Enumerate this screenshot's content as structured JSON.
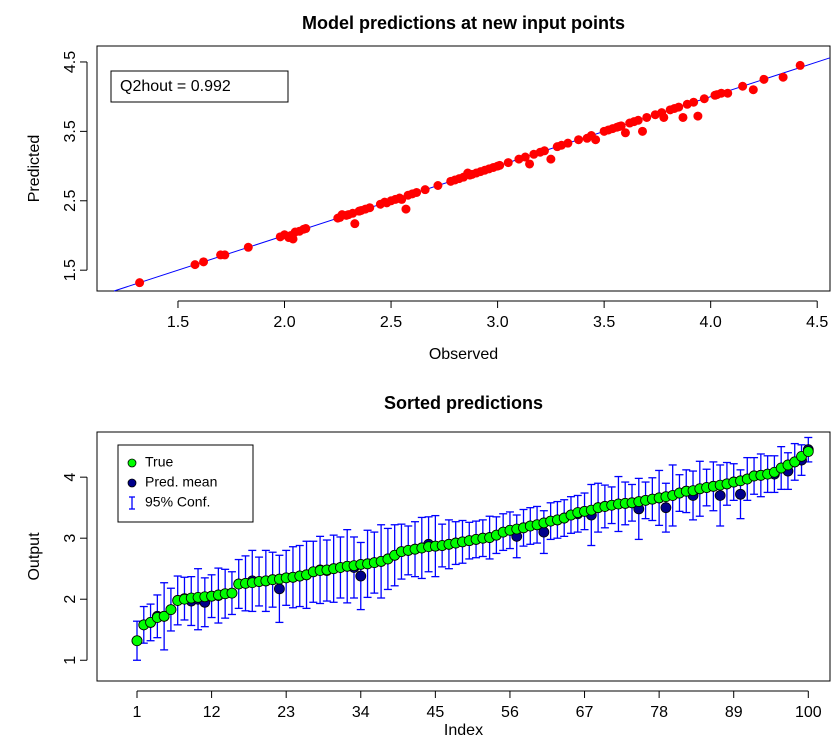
{
  "chart_data": [
    {
      "type": "scatter",
      "title": "Model predictions at new input points",
      "x_label": "Observed",
      "y_label": "Predicted",
      "annotation": "Q2hout = 0.992",
      "color": "#ff0000",
      "line_color": "#0000ff",
      "xlim": [
        1.12,
        4.56
      ],
      "ylim": [
        1.2,
        4.73
      ],
      "xticks": [
        1.5,
        {
          "value": 2,
          "label": "2.0"
        },
        2.5,
        {
          "value": 3,
          "label": "3.0"
        },
        3.5,
        {
          "value": 4,
          "label": "4.0"
        },
        4.5
      ],
      "yticks": [
        1.5,
        2.5,
        3.5,
        4.5
      ],
      "x": [
        1.32,
        1.58,
        1.62,
        1.7,
        1.72,
        1.83,
        1.98,
        2.0,
        2.02,
        2.03,
        2.04,
        2.05,
        2.07,
        2.09,
        2.1,
        2.25,
        2.26,
        2.27,
        2.29,
        2.3,
        2.32,
        2.33,
        2.35,
        2.36,
        2.38,
        2.4,
        2.45,
        2.47,
        2.48,
        2.5,
        2.52,
        2.54,
        2.55,
        2.57,
        2.58,
        2.6,
        2.62,
        2.66,
        2.72,
        2.78,
        2.8,
        2.82,
        2.84,
        2.86,
        2.87,
        2.88,
        2.9,
        2.92,
        2.94,
        2.96,
        2.98,
        3.0,
        3.01,
        3.05,
        3.1,
        3.13,
        3.15,
        3.17,
        3.2,
        3.22,
        3.25,
        3.28,
        3.3,
        3.33,
        3.38,
        3.42,
        3.44,
        3.46,
        3.5,
        3.52,
        3.54,
        3.56,
        3.57,
        3.58,
        3.6,
        3.62,
        3.64,
        3.66,
        3.68,
        3.7,
        3.74,
        3.77,
        3.78,
        3.81,
        3.83,
        3.85,
        3.87,
        3.89,
        3.92,
        3.94,
        3.97,
        4.02,
        4.03,
        4.05,
        4.08,
        4.15,
        4.2,
        4.25,
        4.34,
        4.42
      ],
      "y": [
        1.32,
        1.58,
        1.62,
        1.72,
        1.72,
        1.83,
        1.98,
        2.01,
        1.97,
        2.0,
        1.95,
        2.05,
        2.06,
        2.09,
        2.1,
        2.25,
        2.26,
        2.3,
        2.29,
        2.3,
        2.32,
        2.17,
        2.35,
        2.36,
        2.38,
        2.4,
        2.45,
        2.48,
        2.47,
        2.5,
        2.52,
        2.54,
        2.52,
        2.38,
        2.58,
        2.6,
        2.62,
        2.66,
        2.72,
        2.78,
        2.8,
        2.82,
        2.84,
        2.9,
        2.87,
        2.88,
        2.9,
        2.92,
        2.94,
        2.96,
        2.98,
        3.0,
        3.01,
        3.05,
        3.1,
        3.13,
        3.03,
        3.17,
        3.2,
        3.22,
        3.1,
        3.28,
        3.3,
        3.33,
        3.38,
        3.4,
        3.44,
        3.38,
        3.5,
        3.52,
        3.54,
        3.56,
        3.57,
        3.58,
        3.48,
        3.62,
        3.64,
        3.66,
        3.5,
        3.7,
        3.74,
        3.77,
        3.7,
        3.81,
        3.83,
        3.85,
        3.7,
        3.89,
        3.92,
        3.72,
        3.97,
        4.02,
        4.03,
        4.05,
        4.05,
        4.15,
        4.1,
        4.25,
        4.28,
        4.45
      ]
    },
    {
      "type": "errorbar",
      "title": "Sorted predictions",
      "x_label": "Index",
      "y_label": "Output",
      "xlim": [
        -4.9,
        103.2
      ],
      "ylim": [
        0.66,
        4.74
      ],
      "xticks": [
        1,
        12,
        23,
        34,
        45,
        56,
        67,
        78,
        89,
        100
      ],
      "yticks": [
        1,
        2,
        3,
        4
      ],
      "x": [
        1,
        2,
        3,
        4,
        5,
        6,
        7,
        8,
        9,
        10,
        11,
        12,
        13,
        14,
        15,
        16,
        17,
        18,
        19,
        20,
        21,
        22,
        23,
        24,
        25,
        26,
        27,
        28,
        29,
        30,
        31,
        32,
        33,
        34,
        35,
        36,
        37,
        38,
        39,
        40,
        41,
        42,
        43,
        44,
        45,
        46,
        47,
        48,
        49,
        50,
        51,
        52,
        53,
        54,
        55,
        56,
        57,
        58,
        59,
        60,
        61,
        62,
        63,
        64,
        65,
        66,
        67,
        68,
        69,
        70,
        71,
        72,
        73,
        74,
        75,
        76,
        77,
        78,
        79,
        80,
        81,
        82,
        83,
        84,
        85,
        86,
        87,
        88,
        89,
        90,
        91,
        92,
        93,
        94,
        95,
        96,
        97,
        98,
        99,
        100
      ],
      "series": [
        {
          "name": "True",
          "color": "#00ff00",
          "values": [
            1.32,
            1.58,
            1.62,
            1.7,
            1.72,
            1.83,
            1.98,
            2.0,
            2.02,
            2.03,
            2.04,
            2.05,
            2.07,
            2.09,
            2.1,
            2.25,
            2.26,
            2.27,
            2.29,
            2.3,
            2.32,
            2.33,
            2.35,
            2.36,
            2.38,
            2.4,
            2.45,
            2.47,
            2.48,
            2.5,
            2.52,
            2.54,
            2.55,
            2.57,
            2.58,
            2.6,
            2.62,
            2.66,
            2.72,
            2.78,
            2.8,
            2.82,
            2.84,
            2.86,
            2.87,
            2.88,
            2.9,
            2.92,
            2.94,
            2.96,
            2.98,
            3.0,
            3.01,
            3.05,
            3.1,
            3.13,
            3.15,
            3.17,
            3.2,
            3.22,
            3.25,
            3.28,
            3.3,
            3.33,
            3.38,
            3.42,
            3.44,
            3.46,
            3.5,
            3.52,
            3.54,
            3.56,
            3.57,
            3.58,
            3.6,
            3.62,
            3.64,
            3.66,
            3.68,
            3.7,
            3.74,
            3.77,
            3.78,
            3.81,
            3.83,
            3.85,
            3.87,
            3.89,
            3.92,
            3.94,
            3.97,
            4.02,
            4.03,
            4.05,
            4.08,
            4.15,
            4.2,
            4.25,
            4.34,
            4.42
          ]
        },
        {
          "name": "Pred. mean",
          "color": "#00008b",
          "values": [
            1.32,
            1.58,
            1.62,
            1.72,
            1.72,
            1.83,
            1.98,
            2.01,
            1.97,
            2.0,
            1.95,
            2.05,
            2.06,
            2.09,
            2.1,
            2.25,
            2.26,
            2.3,
            2.29,
            2.3,
            2.32,
            2.17,
            2.35,
            2.36,
            2.38,
            2.4,
            2.45,
            2.48,
            2.47,
            2.5,
            2.52,
            2.54,
            2.52,
            2.38,
            2.58,
            2.6,
            2.62,
            2.66,
            2.72,
            2.78,
            2.8,
            2.82,
            2.84,
            2.9,
            2.87,
            2.88,
            2.9,
            2.92,
            2.94,
            2.96,
            2.98,
            3.0,
            3.01,
            3.05,
            3.1,
            3.13,
            3.03,
            3.17,
            3.2,
            3.22,
            3.1,
            3.28,
            3.3,
            3.33,
            3.38,
            3.4,
            3.44,
            3.38,
            3.5,
            3.52,
            3.54,
            3.56,
            3.57,
            3.58,
            3.48,
            3.62,
            3.64,
            3.66,
            3.5,
            3.7,
            3.74,
            3.77,
            3.7,
            3.81,
            3.83,
            3.85,
            3.7,
            3.89,
            3.92,
            3.72,
            3.97,
            4.02,
            4.03,
            4.05,
            4.05,
            4.15,
            4.1,
            4.25,
            4.28,
            4.45
          ]
        },
        {
          "name": "95% Conf.",
          "color": "#0000ff",
          "values": [
            0.32,
            0.3,
            0.3,
            0.35,
            0.55,
            0.35,
            0.4,
            0.35,
            0.4,
            0.5,
            0.4,
            0.35,
            0.45,
            0.4,
            0.35,
            0.4,
            0.45,
            0.5,
            0.4,
            0.5,
            0.45,
            0.55,
            0.45,
            0.5,
            0.5,
            0.55,
            0.5,
            0.55,
            0.5,
            0.55,
            0.5,
            0.6,
            0.5,
            0.55,
            0.55,
            0.5,
            0.6,
            0.5,
            0.5,
            0.45,
            0.4,
            0.45,
            0.5,
            0.45,
            0.5,
            0.35,
            0.4,
            0.35,
            0.35,
            0.3,
            0.3,
            0.3,
            0.35,
            0.3,
            0.3,
            0.3,
            0.35,
            0.3,
            0.3,
            0.3,
            0.35,
            0.3,
            0.3,
            0.3,
            0.3,
            0.3,
            0.3,
            0.5,
            0.4,
            0.35,
            0.3,
            0.45,
            0.35,
            0.3,
            0.5,
            0.3,
            0.35,
            0.45,
            0.4,
            0.5,
            0.3,
            0.35,
            0.4,
            0.45,
            0.3,
            0.4,
            0.5,
            0.35,
            0.3,
            0.4,
            0.35,
            0.3,
            0.35,
            0.3,
            0.3,
            0.35,
            0.3,
            0.3,
            0.25,
            0.2
          ]
        }
      ]
    }
  ]
}
